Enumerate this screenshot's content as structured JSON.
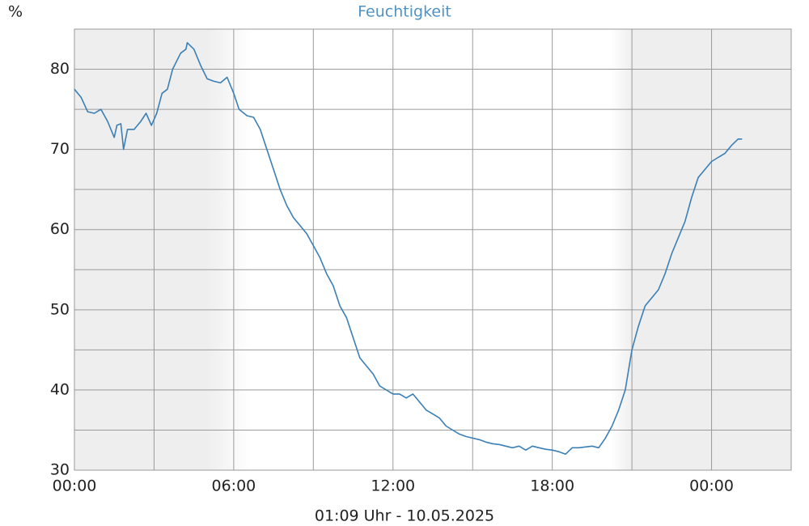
{
  "chart_data": {
    "type": "line",
    "title": "Feuchtigkeit",
    "y_label": "%",
    "footer": "01:09 Uhr - 10.05.2025",
    "x": [
      0,
      0.25,
      0.5,
      0.75,
      1.0,
      1.25,
      1.5,
      1.6,
      1.75,
      1.85,
      2.0,
      2.25,
      2.5,
      2.7,
      2.9,
      3.1,
      3.3,
      3.5,
      3.7,
      4.0,
      4.2,
      4.25,
      4.5,
      4.75,
      5.0,
      5.25,
      5.5,
      5.75,
      6.0,
      6.2,
      6.5,
      6.75,
      7.0,
      7.25,
      7.5,
      7.75,
      8.0,
      8.25,
      8.5,
      8.75,
      9.0,
      9.25,
      9.5,
      9.75,
      10.0,
      10.25,
      10.5,
      10.75,
      11.0,
      11.25,
      11.5,
      11.75,
      12.0,
      12.25,
      12.5,
      12.75,
      13.0,
      13.25,
      13.5,
      13.75,
      14.0,
      14.25,
      14.5,
      14.75,
      15.0,
      15.25,
      15.5,
      15.75,
      16.0,
      16.25,
      16.5,
      16.75,
      17.0,
      17.25,
      17.5,
      17.75,
      18.0,
      18.25,
      18.5,
      18.75,
      19.0,
      19.25,
      19.5,
      19.75,
      20.0,
      20.25,
      20.5,
      20.75,
      21.0,
      21.25,
      21.5,
      21.75,
      22.0,
      22.25,
      22.5,
      22.75,
      23.0,
      23.25,
      23.5,
      23.75,
      24.0,
      24.25,
      24.5,
      24.75,
      25.0,
      25.15
    ],
    "series": [
      {
        "name": "Feuchtigkeit",
        "color": "#3a7fb5",
        "values": [
          77.5,
          76.5,
          74.7,
          74.5,
          75,
          73.5,
          71.5,
          73,
          73.2,
          70,
          72.5,
          72.5,
          73.5,
          74.5,
          73,
          74.5,
          77,
          77.5,
          80,
          82,
          82.5,
          83.3,
          82.5,
          80.5,
          78.8,
          78.5,
          78.3,
          79,
          77,
          75,
          74.2,
          74,
          72.5,
          70,
          67.5,
          65,
          63,
          61.5,
          60.5,
          59.5,
          58,
          56.5,
          54.5,
          53,
          50.5,
          49,
          46.5,
          44,
          43,
          42,
          40.5,
          40,
          39.5,
          39.5,
          39,
          39.5,
          38.5,
          37.5,
          37,
          36.5,
          35.5,
          35,
          34.5,
          34.2,
          34,
          33.8,
          33.5,
          33.3,
          33.2,
          33,
          32.8,
          33,
          32.5,
          33,
          32.8,
          32.6,
          32.5,
          32.3,
          32,
          32.8,
          32.8,
          32.9,
          33,
          32.8,
          34,
          35.5,
          37.5,
          40,
          45,
          48,
          50.5,
          51.5,
          52.5,
          54.5,
          57,
          59,
          61,
          64,
          66.5,
          67.5,
          68.5,
          69,
          69.5,
          70.5,
          71.3,
          71.3
        ]
      }
    ],
    "xlim": [
      0,
      27
    ],
    "ylim": [
      30,
      85
    ],
    "xticks": [
      {
        "value": 0,
        "label": "00:00"
      },
      {
        "value": 6,
        "label": "06:00"
      },
      {
        "value": 12,
        "label": "12:00"
      },
      {
        "value": 18,
        "label": "18:00"
      },
      {
        "value": 24,
        "label": "00:00"
      }
    ],
    "yticks": [
      30,
      40,
      50,
      60,
      70,
      80
    ],
    "xminor": [
      3,
      9,
      15,
      21
    ],
    "yminor": [
      35,
      45,
      55,
      65,
      75
    ],
    "grid": true
  }
}
